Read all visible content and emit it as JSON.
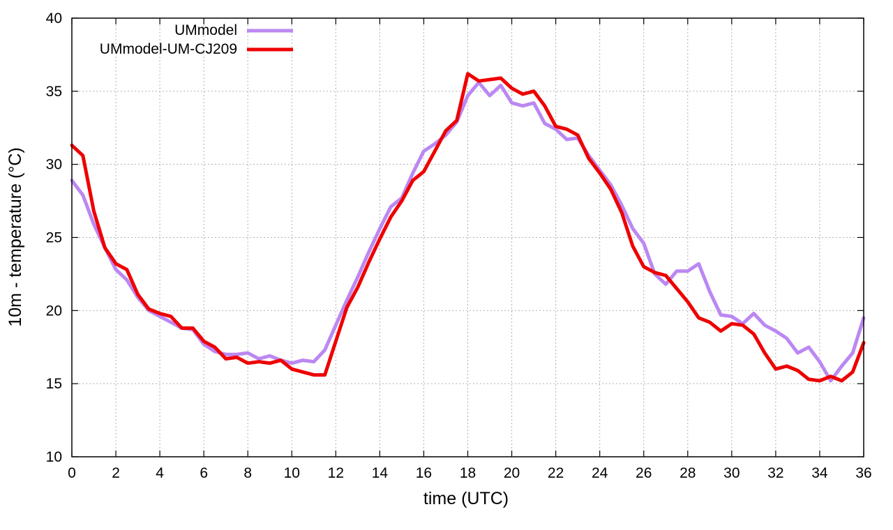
{
  "chart_data": {
    "type": "line",
    "title": "",
    "xlabel": "time (UTC)",
    "ylabel": "10m - temperature (°C)",
    "xlim": [
      0,
      36
    ],
    "ylim": [
      10,
      40
    ],
    "xticks": [
      0,
      2,
      4,
      6,
      8,
      10,
      12,
      14,
      16,
      18,
      20,
      22,
      24,
      26,
      28,
      30,
      32,
      34,
      36
    ],
    "yticks": [
      10,
      15,
      20,
      25,
      30,
      35,
      40
    ],
    "grid": true,
    "legend_position": "top-left",
    "series": [
      {
        "name": "UMmodel",
        "color": "#bb88f2",
        "x": [
          0,
          0.5,
          1,
          1.5,
          2,
          2.5,
          3,
          3.5,
          4,
          4.5,
          5,
          5.5,
          6,
          6.5,
          7,
          7.5,
          8,
          8.5,
          9,
          9.5,
          10,
          10.5,
          11,
          11.5,
          12,
          12.5,
          13,
          13.5,
          14,
          14.5,
          15,
          15.5,
          16,
          16.5,
          17,
          17.5,
          18,
          18.5,
          19,
          19.5,
          20,
          20.5,
          21,
          21.5,
          22,
          22.5,
          23,
          23.5,
          24,
          24.5,
          25,
          25.5,
          26,
          26.5,
          27,
          27.5,
          28,
          28.5,
          29,
          29.5,
          30,
          30.5,
          31,
          31.5,
          32,
          32.5,
          33,
          33.5,
          34,
          34.5,
          35,
          35.5,
          36
        ],
        "values": [
          28.9,
          27.9,
          25.9,
          24.3,
          22.8,
          22.1,
          20.9,
          20.0,
          19.6,
          19.2,
          18.8,
          18.7,
          17.7,
          17.2,
          17.0,
          17.0,
          17.1,
          16.7,
          16.9,
          16.6,
          16.4,
          16.6,
          16.5,
          17.3,
          19.0,
          20.7,
          22.3,
          24.0,
          25.6,
          27.1,
          27.7,
          29.4,
          30.9,
          31.4,
          32.0,
          32.9,
          34.7,
          35.6,
          34.7,
          35.4,
          34.2,
          34.0,
          34.2,
          32.8,
          32.4,
          31.7,
          31.8,
          30.6,
          29.6,
          28.6,
          27.2,
          25.6,
          24.6,
          22.5,
          21.8,
          22.7,
          22.7,
          23.2,
          21.3,
          19.7,
          19.6,
          19.1,
          19.8,
          19.0,
          18.6,
          18.1,
          17.1,
          17.5,
          16.5,
          15.2,
          16.2,
          17.1,
          19.5
        ]
      },
      {
        "name": "UMmodel-UM-CJ209",
        "color": "#ee0000",
        "x": [
          0,
          0.5,
          1,
          1.5,
          2,
          2.5,
          3,
          3.5,
          4,
          4.5,
          5,
          5.5,
          6,
          6.5,
          7,
          7.5,
          8,
          8.5,
          9,
          9.5,
          10,
          10.5,
          11,
          11.5,
          12,
          12.5,
          13,
          13.5,
          14,
          14.5,
          15,
          15.5,
          16,
          16.5,
          17,
          17.5,
          18,
          18.5,
          19,
          19.5,
          20,
          20.5,
          21,
          21.5,
          22,
          22.5,
          23,
          23.5,
          24,
          24.5,
          25,
          25.5,
          26,
          26.5,
          27,
          27.5,
          28,
          28.5,
          29,
          29.5,
          30,
          30.5,
          31,
          31.5,
          32,
          32.5,
          33,
          33.5,
          34,
          34.5,
          35,
          35.5,
          36
        ],
        "values": [
          31.3,
          30.6,
          26.8,
          24.3,
          23.2,
          22.8,
          21.1,
          20.1,
          19.8,
          19.6,
          18.8,
          18.8,
          17.9,
          17.5,
          16.7,
          16.8,
          16.4,
          16.5,
          16.4,
          16.6,
          16.0,
          15.8,
          15.6,
          15.6,
          17.9,
          20.2,
          21.6,
          23.3,
          24.9,
          26.4,
          27.5,
          28.9,
          29.5,
          30.9,
          32.3,
          33.0,
          36.2,
          35.7,
          35.8,
          35.9,
          35.2,
          34.8,
          35.0,
          34.0,
          32.6,
          32.4,
          32.0,
          30.4,
          29.4,
          28.3,
          26.7,
          24.4,
          23.0,
          22.6,
          22.4,
          21.5,
          20.6,
          19.5,
          19.2,
          18.6,
          19.1,
          19.0,
          18.4,
          17.1,
          16.0,
          16.2,
          15.9,
          15.3,
          15.2,
          15.5,
          15.2,
          15.8,
          17.8
        ]
      }
    ]
  }
}
